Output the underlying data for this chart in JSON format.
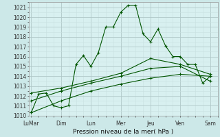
{
  "xlabel": "Pression niveau de la mer( hPa )",
  "bg_color": "#cce8e8",
  "plot_bg_color": "#d8f0f0",
  "line_color": "#005500",
  "grid_major_color": "#b0c8c8",
  "grid_minor_color": "#c8e0e0",
  "ylim": [
    1010,
    1021.5
  ],
  "yticks": [
    1010,
    1011,
    1012,
    1013,
    1014,
    1015,
    1016,
    1017,
    1018,
    1019,
    1020,
    1021
  ],
  "xtick_labels": [
    "LuMar",
    "Dim",
    "Lun",
    "Mer",
    "Jeu",
    "Ven",
    "Sam"
  ],
  "xtick_positions": [
    0,
    2,
    4,
    6,
    8,
    10,
    12
  ],
  "xlim": [
    -0.15,
    12.5
  ],
  "line1_x": [
    0,
    0.5,
    1.0,
    1.5,
    2.0,
    2.5,
    3.0,
    3.5,
    4.0,
    4.5,
    5.0,
    5.5,
    6.0,
    6.5,
    7.0,
    7.5,
    8.0,
    8.5,
    9.0,
    9.5,
    10.0,
    10.5,
    11.0,
    11.5,
    12.0
  ],
  "line1_y": [
    1010.3,
    1012.2,
    1012.3,
    1011.0,
    1010.8,
    1011.0,
    1015.2,
    1016.1,
    1015.0,
    1016.4,
    1019.0,
    1019.0,
    1020.5,
    1021.2,
    1021.2,
    1018.3,
    1017.5,
    1018.8,
    1017.1,
    1016.0,
    1016.0,
    1015.2,
    1015.2,
    1013.3,
    1014.0
  ],
  "line2_x": [
    0,
    2,
    4,
    6,
    8,
    10,
    12
  ],
  "line2_y": [
    1012.3,
    1012.8,
    1013.5,
    1014.3,
    1015.8,
    1015.2,
    1014.2
  ],
  "line3_x": [
    0,
    2,
    4,
    6,
    8,
    10,
    12
  ],
  "line3_y": [
    1010.3,
    1011.5,
    1012.5,
    1013.2,
    1013.8,
    1014.2,
    1014.0
  ],
  "line4_x": [
    0,
    2,
    4,
    6,
    8,
    10,
    12
  ],
  "line4_y": [
    1011.5,
    1012.5,
    1013.3,
    1014.0,
    1014.8,
    1015.0,
    1013.5
  ]
}
